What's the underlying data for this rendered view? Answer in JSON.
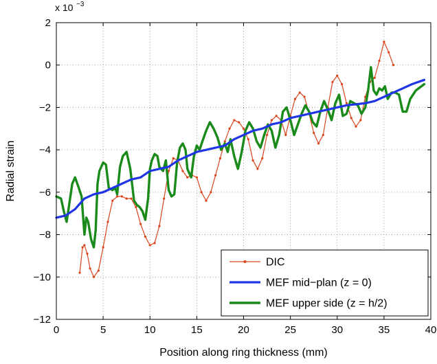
{
  "chart_data": {
    "type": "line",
    "title": "",
    "xlabel": "Position along ring thickness (mm)",
    "ylabel": "Radial strain",
    "y_multiplier_label": "x 10",
    "y_multiplier_exponent": "−3",
    "xlim": [
      0,
      40
    ],
    "ylim": [
      -12,
      2
    ],
    "y_scale_factor": 0.001,
    "grid": true,
    "legend_position": "lower-right",
    "x_ticks": [
      0,
      5,
      10,
      15,
      20,
      25,
      30,
      35,
      40
    ],
    "y_ticks": [
      -12,
      -10,
      -8,
      -6,
      -4,
      -2,
      0,
      2
    ],
    "x_tick_labels": [
      "0",
      "5",
      "10",
      "15",
      "20",
      "25",
      "30",
      "35",
      "40"
    ],
    "y_tick_labels": [
      "−12",
      "−10",
      "−8",
      "−6",
      "−4",
      "−2",
      "0",
      "2"
    ],
    "series": [
      {
        "name": "DIC",
        "color": "#d9441c",
        "marker": "dot",
        "x": [
          2.5,
          2.8,
          3.0,
          3.3,
          3.6,
          4.0,
          4.5,
          5.0,
          5.5,
          6.0,
          6.5,
          7.0,
          7.5,
          8.0,
          8.5,
          9.0,
          9.5,
          10.0,
          10.5,
          11.0,
          11.5,
          12.0,
          12.5,
          13.0,
          13.5,
          14.0,
          14.5,
          15.0,
          15.5,
          16.0,
          16.5,
          17.0,
          17.5,
          18.0,
          18.5,
          19.0,
          19.5,
          20.0,
          20.5,
          21.0,
          21.5,
          22.0,
          22.5,
          23.0,
          23.5,
          24.0,
          24.5,
          25.0,
          25.5,
          26.0,
          26.5,
          27.0,
          27.5,
          28.0,
          28.5,
          29.0,
          29.5,
          30.0,
          30.5,
          31.0,
          31.5,
          32.0,
          32.5,
          33.0,
          33.5,
          34.0,
          34.5,
          35.0,
          35.5,
          36.0
        ],
        "y": [
          -9.8,
          -8.6,
          -8.5,
          -8.9,
          -9.6,
          -10.0,
          -9.7,
          -8.6,
          -7.4,
          -6.4,
          -6.2,
          -6.2,
          -6.3,
          -6.3,
          -6.7,
          -7.5,
          -8.1,
          -8.5,
          -8.4,
          -7.6,
          -6.3,
          -5.0,
          -4.4,
          -4.5,
          -5.0,
          -5.3,
          -5.2,
          -5.3,
          -6.0,
          -6.4,
          -6.0,
          -5.2,
          -4.4,
          -3.6,
          -3.0,
          -2.6,
          -2.7,
          -3.0,
          -3.5,
          -4.5,
          -4.9,
          -4.4,
          -3.3,
          -2.6,
          -2.4,
          -2.6,
          -3.3,
          -2.4,
          -1.6,
          -1.3,
          -1.5,
          -2.3,
          -3.2,
          -3.7,
          -3.3,
          -2.0,
          -0.8,
          -0.5,
          -0.9,
          -1.8,
          -2.5,
          -2.9,
          -2.6,
          -1.5,
          -0.8,
          -0.6,
          0.2,
          1.1,
          0.6,
          0.0
        ]
      },
      {
        "name": "MEF mid−plan (z = 0)",
        "color": "#1f35e6",
        "x": [
          0,
          1,
          2,
          3,
          4,
          5,
          6,
          7,
          8,
          9,
          10,
          11,
          12,
          13,
          14,
          15,
          16,
          17,
          18,
          19,
          20,
          21,
          22,
          23,
          24,
          25,
          26,
          27,
          28,
          29,
          30,
          31,
          32,
          33,
          34,
          35,
          36,
          37,
          38,
          39.3
        ],
        "y": [
          -7.2,
          -7.1,
          -6.8,
          -6.3,
          -6.1,
          -6.0,
          -5.8,
          -5.6,
          -5.4,
          -5.3,
          -5.0,
          -4.9,
          -4.8,
          -4.5,
          -4.3,
          -4.1,
          -4.0,
          -3.9,
          -3.8,
          -3.5,
          -3.3,
          -3.1,
          -3.0,
          -2.8,
          -2.7,
          -2.5,
          -2.4,
          -2.3,
          -2.2,
          -2.1,
          -2.0,
          -1.9,
          -1.85,
          -1.8,
          -1.7,
          -1.5,
          -1.3,
          -1.1,
          -0.9,
          -0.7
        ]
      },
      {
        "name": "MEF upper side (z = h/2)",
        "color": "#1a8a1a",
        "x": [
          0,
          0.5,
          0.8,
          1.1,
          1.4,
          1.7,
          2.0,
          2.4,
          2.7,
          3.0,
          3.2,
          3.4,
          3.7,
          4.0,
          4.2,
          4.4,
          4.6,
          5.0,
          5.3,
          5.6,
          6.0,
          6.3,
          6.5,
          6.8,
          7.1,
          7.5,
          7.9,
          8.3,
          8.6,
          8.9,
          9.2,
          9.5,
          9.8,
          10.0,
          10.2,
          10.5,
          10.8,
          11.0,
          11.4,
          11.7,
          12.0,
          12.3,
          12.6,
          12.9,
          13.2,
          13.5,
          13.8,
          14.0,
          14.4,
          14.7,
          15.0,
          15.3,
          15.6,
          16.0,
          16.4,
          16.8,
          17.2,
          17.6,
          18.0,
          18.3,
          18.6,
          19.0,
          19.4,
          19.8,
          20.2,
          20.6,
          21.0,
          21.4,
          21.8,
          22.2,
          22.6,
          23.0,
          23.4,
          23.8,
          24.2,
          24.6,
          25.0,
          25.4,
          25.8,
          26.2,
          26.6,
          27.0,
          27.4,
          27.8,
          28.2,
          28.6,
          29.0,
          29.4,
          29.8,
          30.2,
          30.6,
          31.0,
          31.4,
          31.8,
          32.2,
          32.6,
          33.0,
          33.3,
          33.6,
          33.9,
          34.2,
          34.5,
          34.8,
          35.1,
          35.4,
          35.8,
          36.2,
          36.6,
          37.0,
          37.4,
          37.8,
          38.4,
          39.3
        ],
        "y": [
          -6.2,
          -6.3,
          -6.9,
          -7.4,
          -6.5,
          -5.6,
          -5.3,
          -5.8,
          -6.2,
          -8.0,
          -7.2,
          -7.4,
          -8.2,
          -8.6,
          -7.8,
          -5.6,
          -5.0,
          -4.6,
          -4.7,
          -5.8,
          -5.9,
          -5.8,
          -6.1,
          -4.8,
          -4.3,
          -4.1,
          -4.9,
          -6.4,
          -6.6,
          -6.7,
          -6.9,
          -7.3,
          -6.3,
          -4.9,
          -4.5,
          -4.2,
          -4.3,
          -4.8,
          -5.0,
          -4.5,
          -5.9,
          -6.2,
          -6.1,
          -4.6,
          -3.9,
          -3.7,
          -4.0,
          -4.9,
          -5.3,
          -4.3,
          -3.8,
          -4.0,
          -3.6,
          -3.1,
          -2.7,
          -3.0,
          -3.4,
          -4.0,
          -3.7,
          -4.1,
          -3.5,
          -4.3,
          -4.9,
          -4.1,
          -3.1,
          -2.7,
          -3.0,
          -3.6,
          -3.9,
          -3.3,
          -2.8,
          -3.1,
          -3.9,
          -3.3,
          -2.2,
          -2.0,
          -2.6,
          -3.3,
          -2.8,
          -2.3,
          -1.9,
          -2.2,
          -2.7,
          -2.9,
          -2.2,
          -1.7,
          -2.1,
          -2.6,
          -1.8,
          -1.4,
          -2.4,
          -2.3,
          -1.7,
          -1.8,
          -1.9,
          -2.3,
          -2.0,
          -1.2,
          -0.1,
          -1.2,
          -1.4,
          -1.1,
          -1.2,
          -1.0,
          -1.6,
          -1.3,
          -1.3,
          -1.4,
          -2.2,
          -2.2,
          -1.6,
          -1.2,
          -0.9
        ]
      }
    ]
  }
}
